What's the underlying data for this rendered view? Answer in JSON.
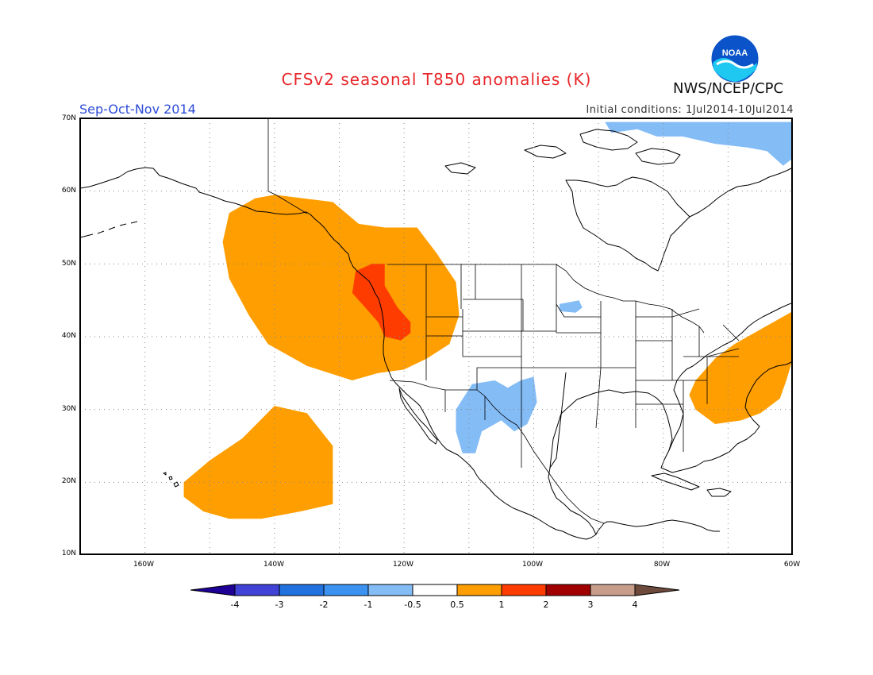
{
  "header": {
    "title": "CFSv2 seasonal T850 anomalies (K)",
    "season": "Sep-Oct-Nov 2014",
    "init": "Initial conditions: 1Jul2014-10Jul2014",
    "agency": "NWS/NCEP/CPC",
    "logo_text": "NOAA"
  },
  "map": {
    "projection": "equirectangular",
    "lon_range": [
      -170,
      -60
    ],
    "lat_range": [
      10,
      70
    ],
    "grid": true,
    "lat_labels": [
      "70N",
      "60N",
      "50N",
      "40N",
      "30N",
      "20N",
      "10N"
    ],
    "lon_labels": [
      "160W",
      "140W",
      "120W",
      "100W",
      "80W",
      "60W"
    ],
    "anomaly_regions": [
      {
        "name": "northeast-pacific-warm",
        "category": "0.5 to 1",
        "color": "#ff9e00",
        "outline": [
          [
            -140,
            59.5
          ],
          [
            -131,
            58.5
          ],
          [
            -127,
            55.5
          ],
          [
            -123,
            55
          ],
          [
            -118,
            55
          ],
          [
            -115,
            51.5
          ],
          [
            -112,
            47.5
          ],
          [
            -111.5,
            43
          ],
          [
            -113,
            39
          ],
          [
            -116.5,
            37
          ],
          [
            -120,
            35.5
          ],
          [
            -124,
            35
          ],
          [
            -128,
            34
          ],
          [
            -135,
            36
          ],
          [
            -141,
            39
          ],
          [
            -144,
            43
          ],
          [
            -147,
            48
          ],
          [
            -148,
            53
          ],
          [
            -147,
            57
          ],
          [
            -143,
            59
          ]
        ]
      },
      {
        "name": "pacific-northwest-warm",
        "category": "1 to 2",
        "color": "#ff3c00",
        "outline": [
          [
            -127.5,
            49
          ],
          [
            -125,
            50
          ],
          [
            -123,
            50
          ],
          [
            -123,
            47
          ],
          [
            -121,
            44
          ],
          [
            -119,
            42
          ],
          [
            -119,
            40.5
          ],
          [
            -120.5,
            39.5
          ],
          [
            -123,
            40
          ],
          [
            -124,
            42
          ],
          [
            -126,
            44
          ],
          [
            -128,
            46
          ]
        ]
      },
      {
        "name": "subtropical-pacific-warm",
        "category": "0.5 to 1",
        "color": "#ff9e00",
        "outline": [
          [
            -140,
            30.5
          ],
          [
            -135,
            29.5
          ],
          [
            -131,
            25
          ],
          [
            -131,
            17
          ],
          [
            -136,
            16
          ],
          [
            -142,
            15
          ],
          [
            -147,
            15
          ],
          [
            -151,
            16
          ],
          [
            -154,
            18
          ],
          [
            -154,
            20
          ],
          [
            -150,
            23
          ],
          [
            -145,
            26
          ]
        ]
      },
      {
        "name": "western-atlantic-warm",
        "category": "0.5 to 1",
        "color": "#ff9e00",
        "outline": [
          [
            -60,
            43.5
          ],
          [
            -60,
            37
          ],
          [
            -61,
            34
          ],
          [
            -62,
            31.5
          ],
          [
            -65,
            29.5
          ],
          [
            -68,
            28.5
          ],
          [
            -72,
            28
          ],
          [
            -75,
            30
          ],
          [
            -76,
            32
          ],
          [
            -75,
            34
          ],
          [
            -72,
            37
          ],
          [
            -69,
            39
          ],
          [
            -64,
            41.5
          ]
        ]
      },
      {
        "name": "arctic-cold",
        "category": "-1 to -0.5",
        "color": "#84bcf6",
        "outline": [
          [
            -89,
            69.5
          ],
          [
            -60,
            69.5
          ],
          [
            -60,
            64.5
          ],
          [
            -61.5,
            63.5
          ],
          [
            -64,
            65.5
          ],
          [
            -67,
            66
          ],
          [
            -72,
            66.5
          ],
          [
            -77,
            67.5
          ],
          [
            -81,
            67.5
          ],
          [
            -84,
            68.5
          ],
          [
            -88,
            68
          ]
        ]
      },
      {
        "name": "southwest-us-cold",
        "category": "-1 to -0.5",
        "color": "#84bcf6",
        "outline": [
          [
            -109.5,
            33.5
          ],
          [
            -106,
            34
          ],
          [
            -104,
            33
          ],
          [
            -102,
            34
          ],
          [
            -100,
            34.5
          ],
          [
            -99.5,
            31
          ],
          [
            -101,
            28
          ],
          [
            -103,
            27
          ],
          [
            -105,
            28.5
          ],
          [
            -108,
            27
          ],
          [
            -109,
            24
          ],
          [
            -111,
            24
          ],
          [
            -112,
            27
          ],
          [
            -112,
            30
          ]
        ]
      },
      {
        "name": "great-lakes-cold-spot",
        "category": "-1 to -0.5",
        "color": "#84bcf6",
        "outline": [
          [
            -96,
            44.5
          ],
          [
            -93,
            45
          ],
          [
            -92.5,
            44
          ],
          [
            -93.5,
            43.3
          ],
          [
            -96,
            43.5
          ]
        ]
      }
    ]
  },
  "legend": {
    "colors": [
      "#1e0096",
      "#4142d6",
      "#2171df",
      "#3c92f0",
      "#84bcf6",
      "#ffffff",
      "#ff9e00",
      "#ff3c00",
      "#a00000",
      "#c89e8a",
      "#6e4a3c"
    ],
    "labels": [
      "-4",
      "-3",
      "-2",
      "-1",
      "-0.5",
      "0.5",
      "1",
      "2",
      "3",
      "4"
    ]
  }
}
